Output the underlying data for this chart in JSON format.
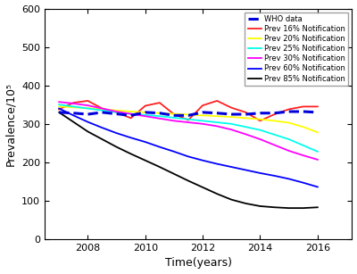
{
  "xlabel": "Time(years)",
  "ylabel": "Prevalence/10⁵",
  "xlim": [
    2006.5,
    2017.2
  ],
  "ylim": [
    0,
    600
  ],
  "yticks": [
    0,
    100,
    200,
    300,
    400,
    500,
    600
  ],
  "xticks": [
    2008,
    2010,
    2012,
    2014,
    2016
  ],
  "years": [
    2007,
    2007.5,
    2008,
    2008.5,
    2009,
    2009.5,
    2010,
    2010.5,
    2011,
    2011.5,
    2012,
    2012.5,
    2013,
    2013.5,
    2014,
    2014.5,
    2015,
    2015.5,
    2016
  ],
  "who_data": [
    330,
    328,
    325,
    330,
    326,
    322,
    330,
    328,
    322,
    322,
    330,
    328,
    325,
    325,
    328,
    328,
    332,
    332,
    330
  ],
  "prev16": [
    338,
    355,
    360,
    340,
    330,
    315,
    347,
    355,
    325,
    310,
    348,
    360,
    342,
    330,
    308,
    325,
    338,
    345,
    345
  ],
  "prev20": [
    345,
    343,
    341,
    338,
    335,
    332,
    330,
    328,
    326,
    324,
    322,
    320,
    318,
    315,
    312,
    308,
    303,
    292,
    278
  ],
  "prev25": [
    350,
    345,
    340,
    335,
    330,
    326,
    323,
    320,
    316,
    312,
    308,
    304,
    300,
    292,
    284,
    272,
    260,
    244,
    228
  ],
  "prev30": [
    357,
    353,
    348,
    340,
    332,
    326,
    320,
    314,
    308,
    304,
    300,
    294,
    285,
    273,
    260,
    245,
    230,
    218,
    207
  ],
  "prev60": [
    340,
    322,
    305,
    290,
    276,
    264,
    253,
    240,
    228,
    215,
    205,
    196,
    188,
    180,
    172,
    165,
    157,
    147,
    136
  ],
  "prev85": [
    330,
    305,
    280,
    260,
    240,
    222,
    205,
    188,
    170,
    152,
    135,
    118,
    103,
    93,
    86,
    83,
    81,
    81,
    83
  ],
  "who_color": "#0000dd",
  "prev16_color": "#ff2020",
  "prev20_color": "#ffff00",
  "prev25_color": "#00ffee",
  "prev30_color": "#ff00ff",
  "prev60_color": "#0000ff",
  "prev85_color": "#000000",
  "legend_labels": [
    "WHO data",
    "Prev 16% Notification",
    "Prev 20% Notification",
    "Prev 25% Notification",
    "Prev 30% Notification",
    "Prev 60% Notification",
    "Prev 85% Notification"
  ]
}
